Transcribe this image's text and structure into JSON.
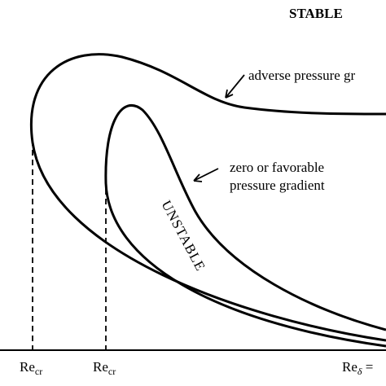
{
  "labels": {
    "stable": "STABLE",
    "adverse": "adverse pressure gr",
    "zero_favorable": [
      "zero or favorable",
      "pressure gradient"
    ],
    "unstable": "UNSTABLE"
  },
  "axis_labels": [
    {
      "main": "Re",
      "sub": "cr"
    },
    {
      "main": "Re",
      "sub": "cr"
    },
    {
      "main": "Re",
      "sub": "δ",
      "tail": " ="
    }
  ]
}
